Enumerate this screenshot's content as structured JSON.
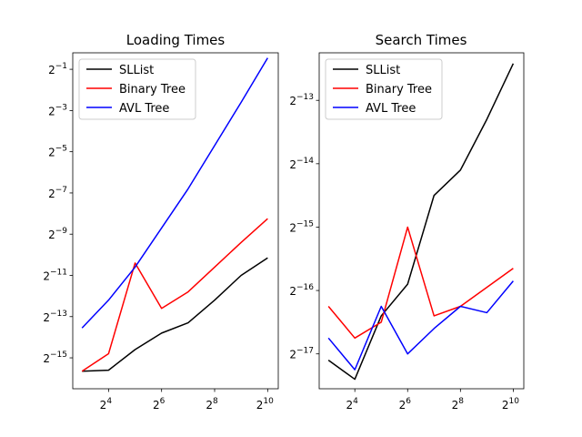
{
  "chart_data": [
    {
      "type": "line",
      "title": "Loading Times",
      "xscale": "log2",
      "yscale": "log2",
      "x": [
        3,
        4,
        5,
        6,
        7,
        8,
        9,
        10
      ],
      "x_is_exponent": true,
      "xlim_exp": [
        2.65,
        10.4
      ],
      "ylim_exp": [
        -16.5,
        -0.2
      ],
      "xticks": [
        {
          "base": "2",
          "exp": "4",
          "value": 4
        },
        {
          "base": "2",
          "exp": "6",
          "value": 6
        },
        {
          "base": "2",
          "exp": "8",
          "value": 8
        },
        {
          "base": "2",
          "exp": "10",
          "value": 10
        }
      ],
      "yticks": [
        {
          "base": "2",
          "exp": "−1",
          "value": -1
        },
        {
          "base": "2",
          "exp": "−3",
          "value": -3
        },
        {
          "base": "2",
          "exp": "−5",
          "value": -5
        },
        {
          "base": "2",
          "exp": "−7",
          "value": -7
        },
        {
          "base": "2",
          "exp": "−9",
          "value": -9
        },
        {
          "base": "2",
          "exp": "−11",
          "value": -11
        },
        {
          "base": "2",
          "exp": "−13",
          "value": -13
        },
        {
          "base": "2",
          "exp": "−15",
          "value": -15
        }
      ],
      "series": [
        {
          "name": "SLList",
          "color": "#000000",
          "log2_values": [
            -15.65,
            -15.6,
            -14.6,
            -13.8,
            -13.3,
            -12.2,
            -11.0,
            -10.15
          ]
        },
        {
          "name": "Binary Tree",
          "color": "#ff0000",
          "log2_values": [
            -15.65,
            -14.8,
            -10.4,
            -12.6,
            -11.8,
            -10.6,
            -9.4,
            -8.25
          ]
        },
        {
          "name": "AVL Tree",
          "color": "#0000ff",
          "log2_values": [
            -13.55,
            -12.2,
            -10.6,
            -8.7,
            -6.8,
            -4.7,
            -2.6,
            -0.45
          ]
        }
      ],
      "legend": "top-left"
    },
    {
      "type": "line",
      "title": "Search Times",
      "xscale": "log2",
      "yscale": "log2",
      "x": [
        3,
        4,
        5,
        6,
        7,
        8,
        9,
        10
      ],
      "x_is_exponent": true,
      "xlim_exp": [
        2.65,
        10.4
      ],
      "ylim_exp": [
        -17.55,
        -12.25
      ],
      "xticks": [
        {
          "base": "2",
          "exp": "4",
          "value": 4
        },
        {
          "base": "2",
          "exp": "6",
          "value": 6
        },
        {
          "base": "2",
          "exp": "8",
          "value": 8
        },
        {
          "base": "2",
          "exp": "10",
          "value": 10
        }
      ],
      "yticks": [
        {
          "base": "2",
          "exp": "−13",
          "value": -13
        },
        {
          "base": "2",
          "exp": "−14",
          "value": -14
        },
        {
          "base": "2",
          "exp": "−15",
          "value": -15
        },
        {
          "base": "2",
          "exp": "−16",
          "value": -16
        },
        {
          "base": "2",
          "exp": "−17",
          "value": -17
        }
      ],
      "series": [
        {
          "name": "SLList",
          "color": "#000000",
          "log2_values": [
            -17.1,
            -17.4,
            -16.4,
            -15.9,
            -14.5,
            -14.1,
            -13.3,
            -12.42
          ]
        },
        {
          "name": "Binary Tree",
          "color": "#ff0000",
          "log2_values": [
            -16.25,
            -16.75,
            -16.5,
            -15.0,
            -16.4,
            -16.25,
            -15.95,
            -15.65
          ]
        },
        {
          "name": "AVL Tree",
          "color": "#0000ff",
          "log2_values": [
            -16.75,
            -17.25,
            -16.25,
            -17.0,
            -16.6,
            -16.25,
            -16.35,
            -15.85
          ]
        }
      ],
      "legend": "top-left"
    }
  ]
}
